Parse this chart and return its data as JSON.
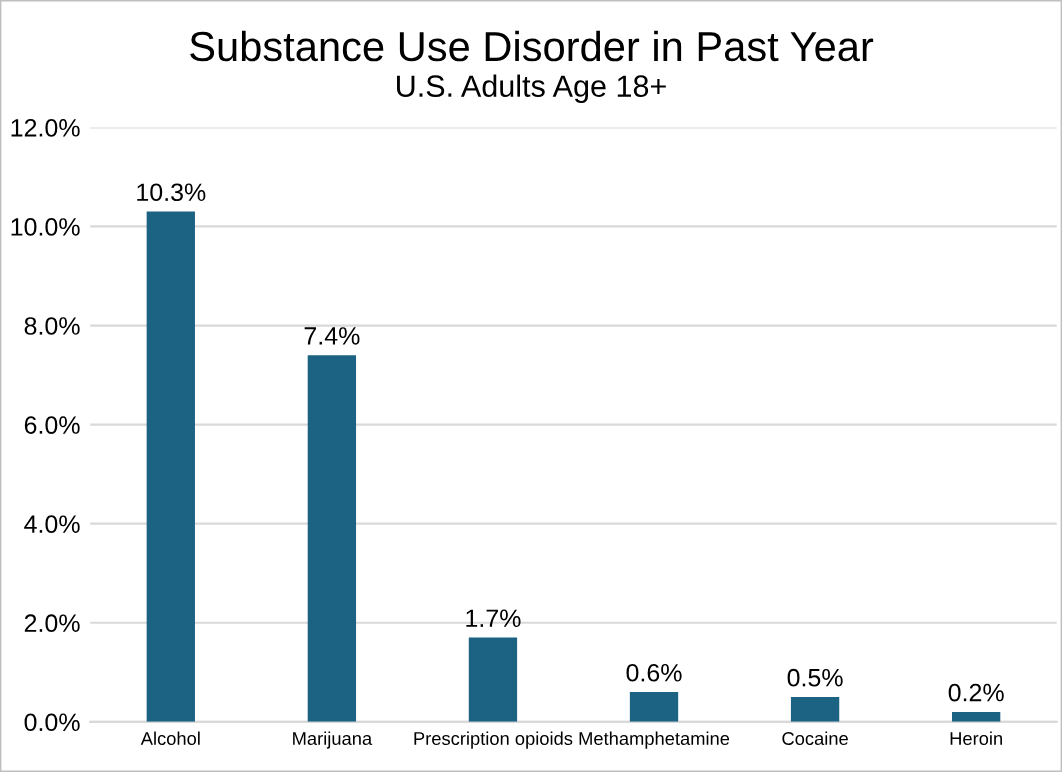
{
  "chart_data": {
    "type": "bar",
    "title": "Substance Use Disorder in Past Year",
    "subtitle": "U.S. Adults Age 18+",
    "categories": [
      "Alcohol",
      "Marijuana",
      "Prescription opioids",
      "Methamphetamine",
      "Cocaine",
      "Heroin"
    ],
    "values": [
      10.3,
      7.4,
      1.7,
      0.6,
      0.5,
      0.2
    ],
    "value_labels": [
      "10.3%",
      "7.4%",
      "1.7%",
      "0.6%",
      "0.5%",
      "0.2%"
    ],
    "color": "#1b6283",
    "ylim": [
      0,
      12
    ],
    "yticks": [
      {
        "value": 0,
        "label": "0.0%"
      },
      {
        "value": 2,
        "label": "2.0%"
      },
      {
        "value": 4,
        "label": "4.0%"
      },
      {
        "value": 6,
        "label": "6.0%"
      },
      {
        "value": 8,
        "label": "8.0%"
      },
      {
        "value": 10,
        "label": "10.0%"
      },
      {
        "value": 12,
        "label": "12.0%"
      }
    ],
    "grid": "y"
  }
}
